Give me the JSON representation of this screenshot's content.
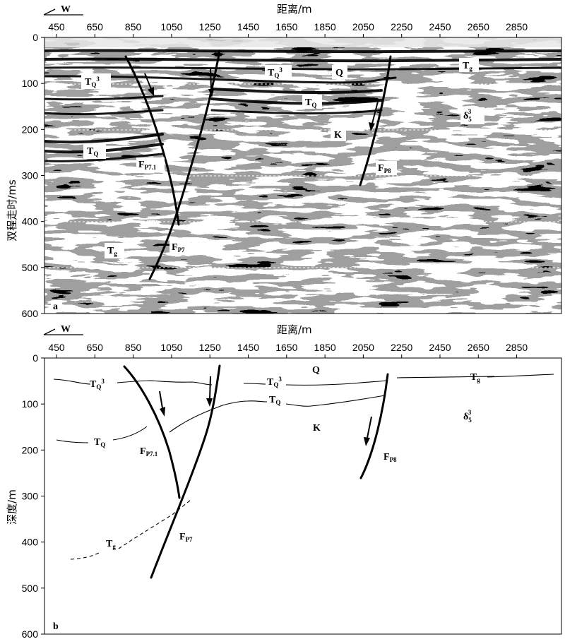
{
  "panel_a": {
    "letter": "a",
    "direction_label": "W",
    "x_title": "距离/m",
    "y_title": "双程走时/ms",
    "x_ticks": [
      "450",
      "650",
      "850",
      "1050",
      "1250",
      "1450",
      "1650",
      "1850",
      "2050",
      "2250",
      "2450",
      "2650",
      "2850"
    ],
    "y_ticks": [
      "0",
      "100",
      "200",
      "300",
      "400",
      "500",
      "600"
    ],
    "labels": {
      "tq3_left": {
        "main": "T",
        "sub": "Q",
        "sup": "3"
      },
      "tq3_mid": {
        "main": "T",
        "sub": "Q",
        "sup": "3"
      },
      "q": {
        "main": "Q"
      },
      "tg_right": {
        "main": "T",
        "sub": "g"
      },
      "tq_mid": {
        "main": "T",
        "sub": "Q"
      },
      "delta": {
        "main": "δ",
        "sub": "5",
        "sup": "3"
      },
      "k": {
        "main": "K"
      },
      "tq_left": {
        "main": "T",
        "sub": "Q"
      },
      "fp71": {
        "main": "F",
        "sub": "P7.1"
      },
      "fp8": {
        "main": "F",
        "sub": "P8"
      },
      "tg_left": {
        "main": "T",
        "sub": "g"
      },
      "fp7": {
        "main": "F",
        "sub": "P7"
      }
    }
  },
  "panel_b": {
    "letter": "b",
    "direction_label": "W",
    "x_title": "距离/m",
    "y_title": "深度/m",
    "x_ticks": [
      "450",
      "650",
      "850",
      "1050",
      "1250",
      "1450",
      "1650",
      "1850",
      "2050",
      "2250",
      "2450",
      "2650",
      "2850"
    ],
    "y_ticks": [
      "0",
      "100",
      "200",
      "300",
      "400",
      "500",
      "600"
    ],
    "labels": {
      "q": {
        "main": "Q"
      },
      "tq3_left": {
        "main": "T",
        "sub": "Q",
        "sup": "3"
      },
      "tq3_mid": {
        "main": "T",
        "sub": "Q",
        "sup": "3"
      },
      "tg_right": {
        "main": "T",
        "sub": "g"
      },
      "tq_mid": {
        "main": "T",
        "sub": "Q"
      },
      "delta": {
        "main": "δ",
        "sub": "5",
        "sup": "3"
      },
      "k": {
        "main": "K"
      },
      "tq_left": {
        "main": "T",
        "sub": "Q"
      },
      "fp71": {
        "main": "F",
        "sub": "P7.1"
      },
      "fp8": {
        "main": "F",
        "sub": "P8"
      },
      "tg_left": {
        "main": "T",
        "sub": "g"
      },
      "fp7": {
        "main": "F",
        "sub": "P7"
      }
    }
  }
}
